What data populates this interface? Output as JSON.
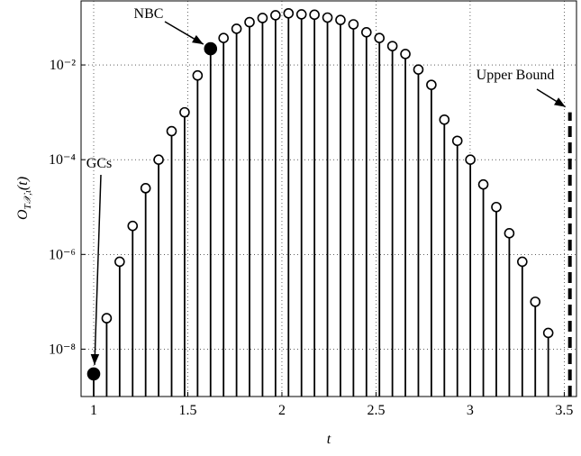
{
  "chart_data": {
    "type": "stem",
    "xlabel": "t",
    "ylabel": {
      "main": "O",
      "sub": "T𝒳,ι",
      "arg": "(t)"
    },
    "x": [
      1,
      1.069,
      1.138,
      1.207,
      1.276,
      1.345,
      1.414,
      1.483,
      1.552,
      1.621,
      1.69,
      1.759,
      1.828,
      1.897,
      1.966,
      2.035,
      2.104,
      2.173,
      2.242,
      2.311,
      2.38,
      2.449,
      2.518,
      2.587,
      2.656,
      2.725,
      2.794,
      2.863,
      2.932,
      3.001,
      3.07,
      3.139,
      3.208,
      3.277,
      3.346,
      3.415
    ],
    "values": [
      3e-09,
      4.5e-08,
      7e-07,
      4e-06,
      2.5e-05,
      0.0001,
      0.0004,
      0.001,
      0.006,
      0.022,
      0.037,
      0.058,
      0.08,
      0.098,
      0.112,
      0.123,
      0.117,
      0.115,
      0.1,
      0.089,
      0.072,
      0.049,
      0.037,
      0.025,
      0.017,
      0.008,
      0.0038,
      0.0007,
      0.00025,
      0.0001,
      3e-05,
      1e-05,
      2.8e-06,
      7e-07,
      1e-07,
      2.2e-08
    ],
    "filled": [
      0,
      9
    ],
    "color": "#000000",
    "upper_bound": {
      "x": 3.53,
      "value": 0.001
    },
    "annotations": [
      "GCs",
      "NBC",
      "Upper Bound"
    ],
    "log_y": true,
    "grid": true,
    "xlim": [
      0.933,
      3.565
    ],
    "ylim": [
      1e-09,
      0.225
    ],
    "xticks": [
      1,
      1.5,
      2,
      2.5,
      3,
      3.5
    ],
    "yticks": [
      {
        "value": 1e-08,
        "label": "10⁻⁸"
      },
      {
        "value": 1e-06,
        "label": "10⁻⁶"
      },
      {
        "value": 0.0001,
        "label": "10⁻⁴"
      },
      {
        "value": 0.01,
        "label": "10⁻²"
      }
    ]
  }
}
